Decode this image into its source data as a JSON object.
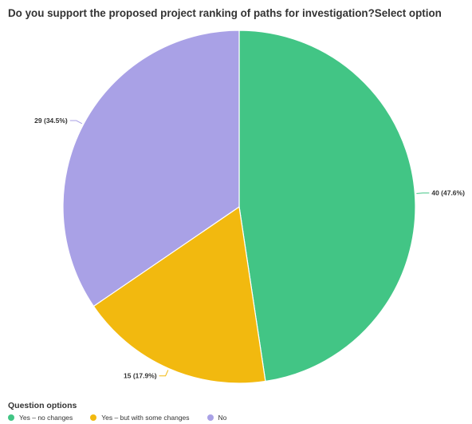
{
  "chart_data": {
    "type": "pie",
    "title": "Do you support the proposed project ranking of paths for investigation?Select option",
    "legend_title": "Question options",
    "legend_position": "bottom-left",
    "slices": [
      {
        "name": "Yes – no changes",
        "value": 40,
        "label": "40 (47.6%)",
        "color": "#42c585"
      },
      {
        "name": "Yes – but with some changes",
        "value": 15,
        "label": "15 (17.9%)",
        "color": "#f2b90f"
      },
      {
        "name": "No",
        "value": 29,
        "label": "29 (34.5%)",
        "color": "#a9a1e6"
      }
    ]
  }
}
